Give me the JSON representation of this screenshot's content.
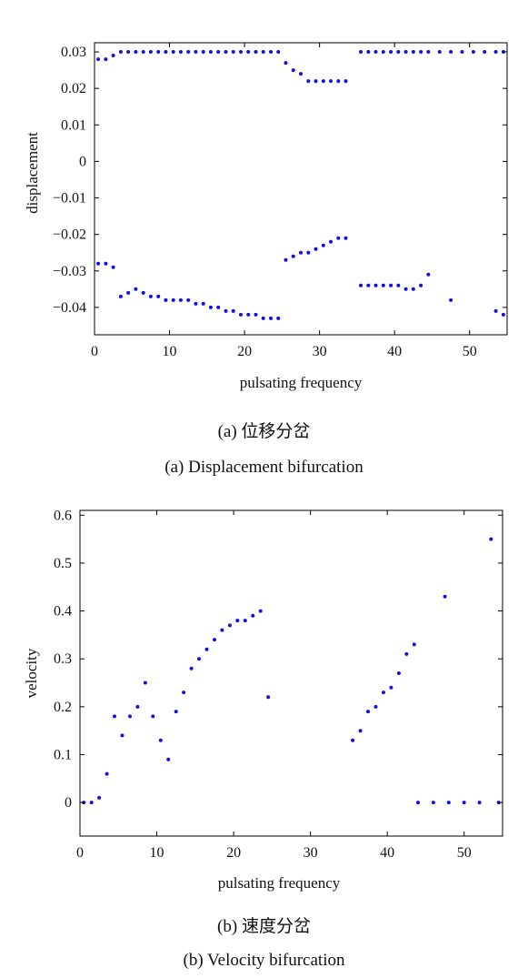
{
  "colors": {
    "points": "#1010e8",
    "axes": "#000000",
    "text": "#111111"
  },
  "captions": {
    "a_cn": "(a) 位移分岔",
    "a_en": "(a) Displacement bifurcation",
    "b_cn": "(b) 速度分岔",
    "b_en": "(b) Velocity bifurcation"
  },
  "chart_data": [
    {
      "type": "scatter",
      "xlabel": "pulsating frequency",
      "ylabel": "displacement",
      "xlim": [
        0,
        55
      ],
      "ylim": [
        -0.0475,
        0.0325
      ],
      "xticks": [
        0,
        10,
        20,
        30,
        40,
        50
      ],
      "xtick_labels": [
        "0",
        "10",
        "20",
        "30",
        "40",
        "50"
      ],
      "yticks": [
        0.03,
        0.02,
        0.01,
        0,
        -0.01,
        -0.02,
        -0.03,
        -0.04
      ],
      "ytick_labels": [
        "0.03",
        "0.02",
        "0.01",
        "0",
        "−0.01",
        "−0.02",
        "−0.03",
        "−0.04"
      ],
      "grid": false,
      "series": [
        {
          "x": [
            0.5,
            1.5,
            2.5,
            3.5,
            4.5,
            5.5,
            6.5,
            7.5,
            8.5,
            9.5,
            10.5,
            11.5,
            12.5,
            13.5,
            14.5,
            15.5,
            16.5,
            17.5,
            18.5,
            19.5,
            20.5,
            21.5,
            22.5,
            23.5,
            24.5,
            25.5,
            26.5,
            27.5,
            28.5,
            29.5,
            30.5,
            31.5,
            32.5,
            33.5,
            35.5,
            36.5,
            37.5,
            38.5,
            39.5,
            40.5,
            41.5,
            42.5,
            43.5,
            44.5,
            46.0,
            47.5,
            49.0,
            50.5,
            52.0,
            53.5,
            54.5
          ],
          "y": [
            0.028,
            0.028,
            0.029,
            0.03,
            0.03,
            0.03,
            0.03,
            0.03,
            0.03,
            0.03,
            0.03,
            0.03,
            0.03,
            0.03,
            0.03,
            0.03,
            0.03,
            0.03,
            0.03,
            0.03,
            0.03,
            0.03,
            0.03,
            0.03,
            0.03,
            0.027,
            0.025,
            0.024,
            0.022,
            0.022,
            0.022,
            0.022,
            0.022,
            0.022,
            0.03,
            0.03,
            0.03,
            0.03,
            0.03,
            0.03,
            0.03,
            0.03,
            0.03,
            0.03,
            0.03,
            0.03,
            0.03,
            0.03,
            0.03,
            0.03,
            0.03
          ]
        },
        {
          "x": [
            0.5,
            1.5,
            2.5,
            3.5,
            4.5,
            5.5,
            6.5,
            7.5,
            8.5,
            9.5,
            10.5,
            11.5,
            12.5,
            13.5,
            14.5,
            15.5,
            16.5,
            17.5,
            18.5,
            19.5,
            20.5,
            21.5,
            22.5,
            23.5,
            24.5,
            25.5,
            26.5,
            27.5,
            28.5,
            29.5,
            30.5,
            31.5,
            32.5,
            33.5,
            35.5,
            36.5,
            37.5,
            38.5,
            39.5,
            40.5,
            41.5,
            42.5,
            43.5,
            44.5,
            47.5,
            53.5,
            54.5
          ],
          "y": [
            -0.028,
            -0.028,
            -0.029,
            -0.037,
            -0.036,
            -0.035,
            -0.036,
            -0.037,
            -0.037,
            -0.038,
            -0.038,
            -0.038,
            -0.038,
            -0.039,
            -0.039,
            -0.04,
            -0.04,
            -0.041,
            -0.041,
            -0.042,
            -0.042,
            -0.042,
            -0.043,
            -0.043,
            -0.043,
            -0.027,
            -0.026,
            -0.025,
            -0.025,
            -0.024,
            -0.023,
            -0.022,
            -0.021,
            -0.021,
            -0.034,
            -0.034,
            -0.034,
            -0.034,
            -0.034,
            -0.034,
            -0.035,
            -0.035,
            -0.034,
            -0.031,
            -0.038,
            -0.041,
            -0.042
          ]
        }
      ]
    },
    {
      "type": "scatter",
      "xlabel": "pulsating frequency",
      "ylabel": "velocity",
      "xlim": [
        0,
        55
      ],
      "ylim": [
        -0.07,
        0.61
      ],
      "xticks": [
        0,
        10,
        20,
        30,
        40,
        50
      ],
      "xtick_labels": [
        "0",
        "10",
        "20",
        "30",
        "40",
        "50"
      ],
      "yticks": [
        0,
        0.1,
        0.2,
        0.3,
        0.4,
        0.5,
        0.6
      ],
      "ytick_labels": [
        "0",
        "0.1",
        "0.2",
        "0.3",
        "0.4",
        "0.5",
        "0.6"
      ],
      "grid": false,
      "series": [
        {
          "x": [
            0.5,
            1.5,
            2.5,
            3.5,
            4.5,
            5.5,
            6.5,
            7.5,
            8.5,
            9.5,
            10.5,
            11.5,
            12.5,
            13.5,
            14.5,
            15.5,
            16.5,
            17.5,
            18.5,
            19.5,
            20.5,
            21.5,
            22.5,
            23.5,
            24.5,
            35.5,
            36.5,
            37.5,
            38.5,
            39.5,
            40.5,
            41.5,
            42.5,
            43.5,
            47.5,
            53.5
          ],
          "y": [
            0.0,
            0.0,
            0.01,
            0.06,
            0.18,
            0.14,
            0.18,
            0.2,
            0.25,
            0.18,
            0.13,
            0.09,
            0.19,
            0.23,
            0.28,
            0.3,
            0.32,
            0.34,
            0.36,
            0.37,
            0.38,
            0.38,
            0.39,
            0.4,
            0.22,
            0.13,
            0.15,
            0.19,
            0.2,
            0.23,
            0.24,
            0.27,
            0.31,
            0.33,
            0.43,
            0.55
          ]
        },
        {
          "x": [
            44.0,
            46.0,
            48.0,
            50.0,
            52.0,
            54.5
          ],
          "y": [
            0.0,
            0.0,
            0.0,
            0.0,
            0.0,
            0.0
          ]
        }
      ]
    }
  ]
}
